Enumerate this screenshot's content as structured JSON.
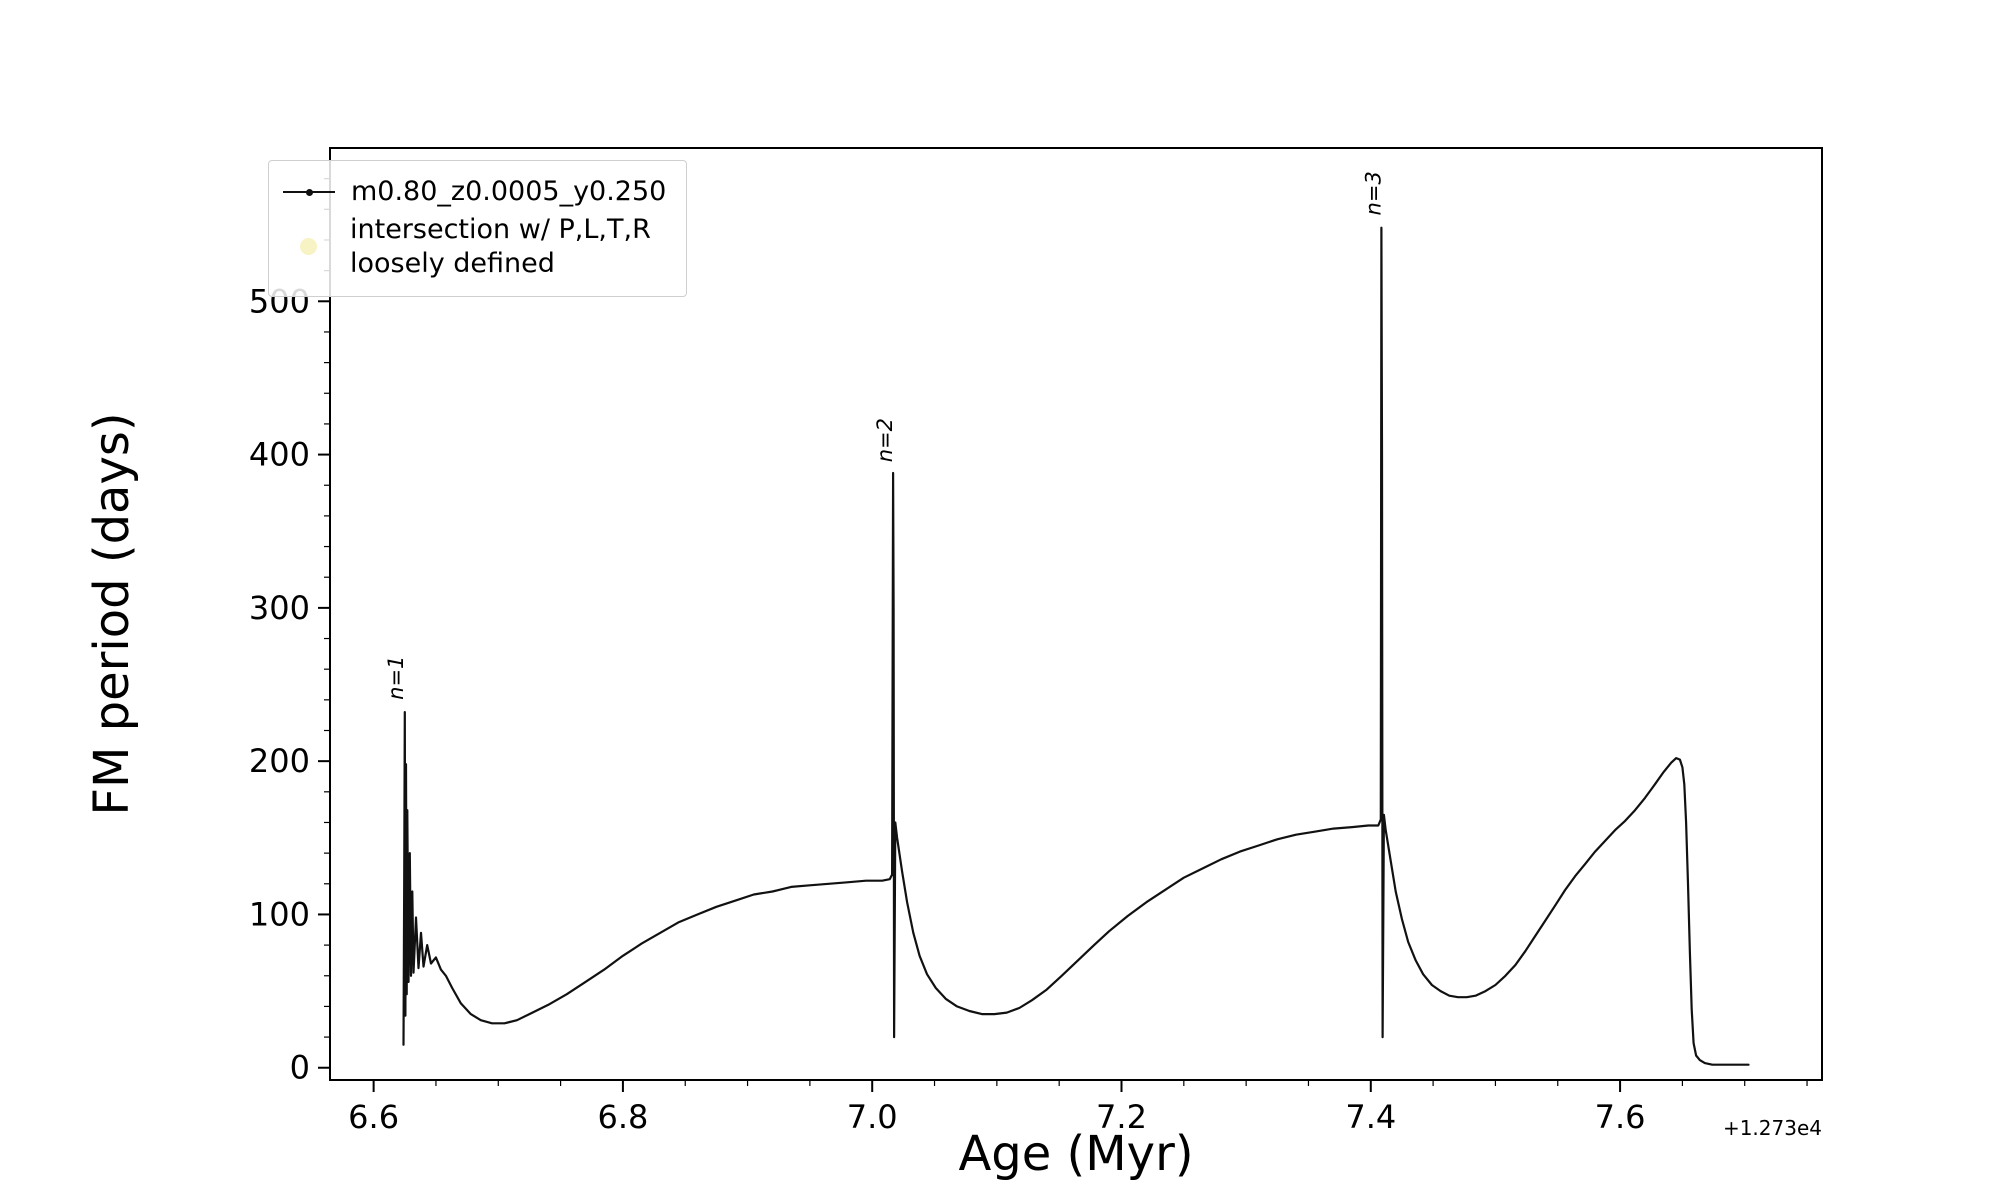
{
  "chart_data": {
    "type": "line",
    "title": "",
    "xlabel": "Age (Myr)",
    "ylabel": "FM period (days)",
    "x_offset_text": "+1.273e4",
    "xlim": [
      6.565,
      7.762
    ],
    "ylim": [
      -8,
      600
    ],
    "grid": false,
    "xticks": [
      6.6,
      6.8,
      7.0,
      7.2,
      7.4,
      7.6
    ],
    "xtick_labels": [
      "6.6",
      "6.8",
      "7.0",
      "7.2",
      "7.4",
      "7.6"
    ],
    "yticks": [
      0,
      100,
      200,
      300,
      400,
      500
    ],
    "ytick_labels": [
      "0",
      "100",
      "200",
      "300",
      "400",
      "500"
    ],
    "x_minor_step": 0.05,
    "y_minor_step": 20,
    "legend": {
      "position": "upper-left",
      "entries": [
        {
          "label": "m0.80_z0.0005_y0.250",
          "marker": "line-dot",
          "color": "#111111"
        },
        {
          "label_line1": "intersection w/ P,L,T,R",
          "label_line2": "loosely defined",
          "marker": "circle",
          "color": "#f5eda4"
        }
      ]
    },
    "annotations": [
      {
        "text": "n=1",
        "x": 6.6235,
        "y": 240,
        "rotation": -90
      },
      {
        "text": "n=2",
        "x": 7.016,
        "y": 395,
        "rotation": -90
      },
      {
        "text": "n=3",
        "x": 7.4078,
        "y": 556,
        "rotation": -90
      }
    ],
    "series": [
      {
        "name": "m0.80_z0.0005_y0.250",
        "color": "#111111",
        "points": [
          [
            6.624,
            15
          ],
          [
            6.6245,
            120
          ],
          [
            6.625,
            232
          ],
          [
            6.6255,
            34
          ],
          [
            6.626,
            198
          ],
          [
            6.6265,
            48
          ],
          [
            6.627,
            168
          ],
          [
            6.628,
            56
          ],
          [
            6.629,
            140
          ],
          [
            6.63,
            60
          ],
          [
            6.631,
            115
          ],
          [
            6.632,
            62
          ],
          [
            6.634,
            98
          ],
          [
            6.636,
            65
          ],
          [
            6.638,
            88
          ],
          [
            6.64,
            66
          ],
          [
            6.643,
            80
          ],
          [
            6.646,
            68
          ],
          [
            6.65,
            72
          ],
          [
            6.654,
            64
          ],
          [
            6.658,
            60
          ],
          [
            6.663,
            52
          ],
          [
            6.67,
            42
          ],
          [
            6.678,
            35
          ],
          [
            6.686,
            31
          ],
          [
            6.695,
            29
          ],
          [
            6.705,
            29
          ],
          [
            6.715,
            31
          ],
          [
            6.725,
            35
          ],
          [
            6.74,
            41
          ],
          [
            6.755,
            48
          ],
          [
            6.77,
            56
          ],
          [
            6.785,
            64
          ],
          [
            6.8,
            73
          ],
          [
            6.815,
            81
          ],
          [
            6.83,
            88
          ],
          [
            6.845,
            95
          ],
          [
            6.86,
            100
          ],
          [
            6.875,
            105
          ],
          [
            6.89,
            109
          ],
          [
            6.905,
            113
          ],
          [
            6.92,
            115
          ],
          [
            6.935,
            118
          ],
          [
            6.95,
            119
          ],
          [
            6.965,
            120
          ],
          [
            6.98,
            121
          ],
          [
            6.995,
            122
          ],
          [
            7.008,
            122
          ],
          [
            7.014,
            123
          ],
          [
            7.016,
            126
          ],
          [
            7.0168,
            388
          ],
          [
            7.0172,
            300
          ],
          [
            7.0176,
            20
          ],
          [
            7.0185,
            160
          ],
          [
            7.02,
            150
          ],
          [
            7.024,
            128
          ],
          [
            7.028,
            108
          ],
          [
            7.033,
            88
          ],
          [
            7.038,
            73
          ],
          [
            7.044,
            61
          ],
          [
            7.051,
            52
          ],
          [
            7.059,
            45
          ],
          [
            7.068,
            40
          ],
          [
            7.078,
            37
          ],
          [
            7.088,
            35
          ],
          [
            7.098,
            35
          ],
          [
            7.108,
            36
          ],
          [
            7.118,
            39
          ],
          [
            7.128,
            44
          ],
          [
            7.14,
            51
          ],
          [
            7.152,
            60
          ],
          [
            7.165,
            70
          ],
          [
            7.178,
            80
          ],
          [
            7.19,
            89
          ],
          [
            7.205,
            99
          ],
          [
            7.22,
            108
          ],
          [
            7.235,
            116
          ],
          [
            7.25,
            124
          ],
          [
            7.265,
            130
          ],
          [
            7.28,
            136
          ],
          [
            7.295,
            141
          ],
          [
            7.31,
            145
          ],
          [
            7.325,
            149
          ],
          [
            7.34,
            152
          ],
          [
            7.355,
            154
          ],
          [
            7.37,
            156
          ],
          [
            7.385,
            157
          ],
          [
            7.398,
            158
          ],
          [
            7.406,
            158
          ],
          [
            7.408,
            162
          ],
          [
            7.4085,
            548
          ],
          [
            7.409,
            400
          ],
          [
            7.4095,
            20
          ],
          [
            7.4105,
            165
          ],
          [
            7.412,
            155
          ],
          [
            7.416,
            135
          ],
          [
            7.42,
            115
          ],
          [
            7.425,
            97
          ],
          [
            7.43,
            82
          ],
          [
            7.436,
            70
          ],
          [
            7.442,
            61
          ],
          [
            7.449,
            54
          ],
          [
            7.456,
            50
          ],
          [
            7.463,
            47
          ],
          [
            7.47,
            46
          ],
          [
            7.477,
            46
          ],
          [
            7.484,
            47
          ],
          [
            7.492,
            50
          ],
          [
            7.5,
            54
          ],
          [
            7.508,
            60
          ],
          [
            7.516,
            67
          ],
          [
            7.524,
            76
          ],
          [
            7.532,
            86
          ],
          [
            7.54,
            96
          ],
          [
            7.548,
            106
          ],
          [
            7.556,
            116
          ],
          [
            7.564,
            125
          ],
          [
            7.572,
            133
          ],
          [
            7.58,
            141
          ],
          [
            7.588,
            148
          ],
          [
            7.596,
            155
          ],
          [
            7.604,
            161
          ],
          [
            7.612,
            168
          ],
          [
            7.62,
            176
          ],
          [
            7.628,
            185
          ],
          [
            7.635,
            193
          ],
          [
            7.641,
            199
          ],
          [
            7.645,
            202
          ],
          [
            7.648,
            201
          ],
          [
            7.65,
            196
          ],
          [
            7.6515,
            185
          ],
          [
            7.653,
            160
          ],
          [
            7.6545,
            120
          ],
          [
            7.656,
            75
          ],
          [
            7.6575,
            38
          ],
          [
            7.659,
            16
          ],
          [
            7.661,
            8
          ],
          [
            7.664,
            5
          ],
          [
            7.668,
            3
          ],
          [
            7.674,
            2
          ],
          [
            7.682,
            2
          ],
          [
            7.69,
            2
          ],
          [
            7.698,
            2
          ],
          [
            7.703,
            2
          ]
        ]
      }
    ]
  }
}
